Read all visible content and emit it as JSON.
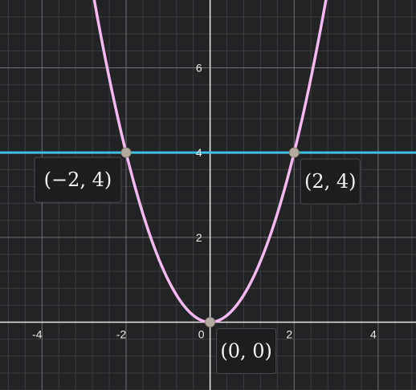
{
  "chart_data": {
    "type": "line",
    "title": "",
    "xlabel": "",
    "ylabel": "",
    "xlim": [
      -5,
      4.9
    ],
    "ylim": [
      -1.6,
      7.6
    ],
    "grid": true,
    "x_ticks": [
      {
        "value": -4,
        "label": "-4"
      },
      {
        "value": -2,
        "label": "-2"
      },
      {
        "value": 0,
        "label": "0"
      },
      {
        "value": 2,
        "label": "2"
      },
      {
        "value": 4,
        "label": "4"
      }
    ],
    "y_ticks": [
      {
        "value": 2,
        "label": "2"
      },
      {
        "value": 4,
        "label": "4"
      },
      {
        "value": 6,
        "label": "6"
      }
    ],
    "series": [
      {
        "function": "y = x^2",
        "color": "#f7b7f1"
      },
      {
        "function": "y = 4",
        "color": "#3ec1e0"
      }
    ],
    "points": [
      {
        "x": -2,
        "y": 4,
        "label": "(−2, 4)",
        "label_side": "below-left"
      },
      {
        "x": 2,
        "y": 4,
        "label": "(2, 4)",
        "label_side": "below-right"
      },
      {
        "x": 0,
        "y": 0,
        "label": "(0, 0)",
        "label_side": "below-right"
      }
    ],
    "point_color": "#b3aaa0"
  }
}
